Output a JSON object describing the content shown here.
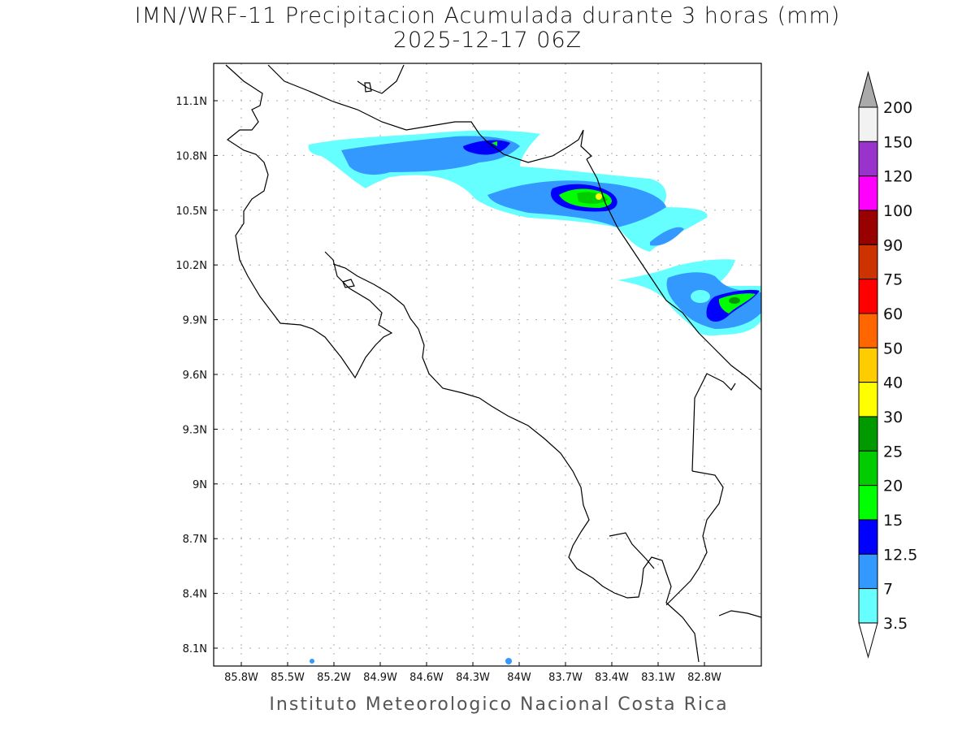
{
  "title": {
    "line1": "IMN/WRF-11 Precipitacion Acumulada durante 3 horas (mm)",
    "line2": "2025-12-17 06Z"
  },
  "footer": "Instituto Meteorologico Nacional Costa Rica",
  "axes": {
    "lon_labels": [
      "85.8W",
      "85.5W",
      "85.2W",
      "84.9W",
      "84.6W",
      "84.3W",
      "84W",
      "83.7W",
      "83.4W",
      "83.1W",
      "82.8W"
    ],
    "lat_labels": [
      "11.1N",
      "10.8N",
      "10.5N",
      "10.2N",
      "9.9N",
      "9.6N",
      "9.3N",
      "9N",
      "8.7N",
      "8.4N",
      "8.1N"
    ]
  },
  "colorbar": {
    "levels": [
      "200",
      "150",
      "120",
      "100",
      "90",
      "75",
      "60",
      "50",
      "40",
      "30",
      "25",
      "20",
      "15",
      "12.5",
      "7",
      "3.5"
    ],
    "colors_top_to_bottom": [
      "#f2f2f2",
      "#9933cc",
      "#ff00ff",
      "#990000",
      "#cc3300",
      "#ff0000",
      "#ff6600",
      "#ffcc00",
      "#ffff00",
      "#009900",
      "#00cc00",
      "#00ff00",
      "#0000ff",
      "#3399ff",
      "#66ffff"
    ],
    "over_color": "#aaaaaa",
    "under_color": "#ffffff"
  },
  "precip_colors": {
    "c3_5": "#66ffff",
    "c7": "#3399ff",
    "c12_5": "#0000ff",
    "c15": "#00ff00",
    "c20": "#00cc00",
    "c25": "#009900",
    "c30": "#ffff00"
  }
}
